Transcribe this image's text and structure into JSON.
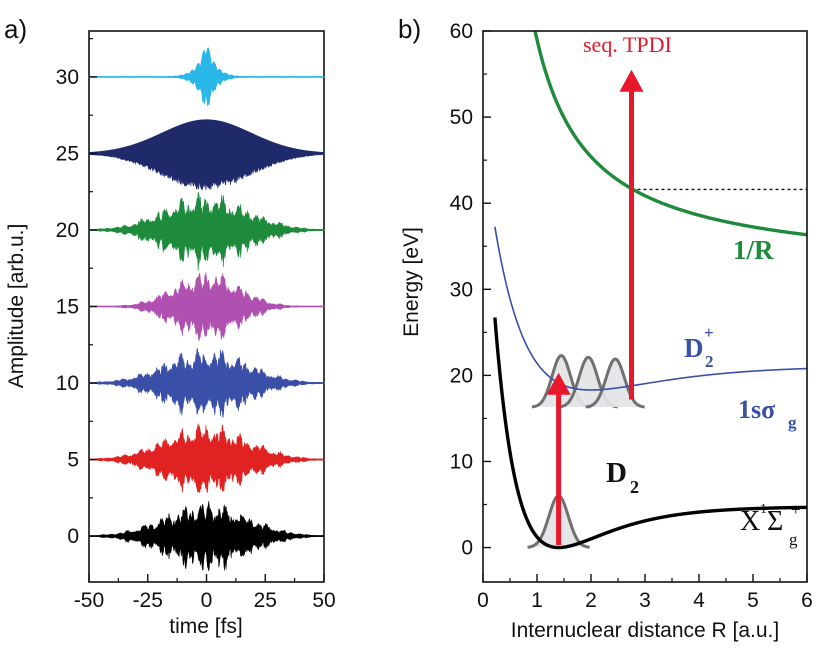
{
  "chart_data": [
    {
      "type": "line",
      "panel_label": "a)",
      "xlabel": "time [fs]",
      "ylabel": "Amplitude [arb.u.]",
      "xlim": [
        -50,
        50
      ],
      "ylim": [
        -3,
        33
      ],
      "x_ticks": [
        -50,
        -25,
        0,
        25,
        50
      ],
      "x_tick_labels": [
        "-50",
        "-25",
        "0",
        "25",
        "50"
      ],
      "y_ticks": [
        0,
        5,
        10,
        15,
        20,
        25,
        30
      ],
      "y_tick_labels": [
        "0",
        "5",
        "10",
        "15",
        "20",
        "25",
        "30"
      ],
      "grid": false,
      "series": [
        {
          "name": "pulse-30",
          "offset": 30,
          "color": "#29b7e8",
          "style": "sharp",
          "peak_amplitude": 2.3,
          "width_fs": 4
        },
        {
          "name": "pulse-25",
          "offset": 25,
          "color": "#1f2a6b",
          "style": "gaussian",
          "peak_amplitude": 2.1,
          "width_fs": 18
        },
        {
          "name": "pulse-20",
          "offset": 20,
          "color": "#1e8a3c",
          "style": "noisy",
          "peak_amplitude": 2.1,
          "width_fs": 14
        },
        {
          "name": "pulse-15",
          "offset": 15,
          "color": "#b050b0",
          "style": "noisy",
          "peak_amplitude": 2.1,
          "width_fs": 11
        },
        {
          "name": "pulse-10",
          "offset": 10,
          "color": "#3a4fa8",
          "style": "noisy",
          "peak_amplitude": 2.0,
          "width_fs": 14
        },
        {
          "name": "pulse-5",
          "offset": 5,
          "color": "#e02222",
          "style": "noisy",
          "peak_amplitude": 2.1,
          "width_fs": 14
        },
        {
          "name": "pulse-0",
          "offset": 0,
          "color": "#000000",
          "style": "noisy",
          "peak_amplitude": 2.0,
          "width_fs": 14
        }
      ]
    },
    {
      "type": "line",
      "panel_label": "b)",
      "xlabel": "Internuclear distance R [a.u.]",
      "ylabel": "Energy [eV]",
      "xlim": [
        0,
        6
      ],
      "ylim": [
        -4,
        60
      ],
      "x_ticks": [
        0,
        1,
        2,
        3,
        4,
        5,
        6
      ],
      "x_tick_labels": [
        "0",
        "1",
        "2",
        "3",
        "4",
        "5",
        "6"
      ],
      "y_ticks": [
        0,
        10,
        20,
        30,
        40,
        50,
        60
      ],
      "y_tick_labels": [
        "0",
        "10",
        "20",
        "30",
        "40",
        "50",
        "60"
      ],
      "grid": false,
      "curves": [
        {
          "name": "D2 ground state",
          "color": "#000000",
          "kind": "morse",
          "De": 4.75,
          "Re": 1.4,
          "a": 1.03,
          "shift": 0
        },
        {
          "name": "D2+ 1s sigma_g",
          "color": "#3a4fa8",
          "kind": "morse",
          "De": 2.8,
          "Re": 2.0,
          "a": 0.72,
          "shift": 18.3
        },
        {
          "name": "Coulomb 1/R",
          "color": "#1e8a3c",
          "kind": "coulomb",
          "coefficient": 27.2,
          "shift": 31.8
        }
      ],
      "wavepackets": [
        {
          "center_R": 1.4,
          "base_energy": 0,
          "height": 6,
          "sigma": 0.18
        },
        {
          "center_R": 1.45,
          "base_energy": 16.3,
          "height": 6,
          "sigma": 0.17
        },
        {
          "center_R": 1.95,
          "base_energy": 16.3,
          "height": 5.8,
          "sigma": 0.17
        },
        {
          "center_R": 2.45,
          "base_energy": 16.3,
          "height": 5.6,
          "sigma": 0.17
        }
      ],
      "arrows": [
        {
          "R": 1.4,
          "from_energy": 0.3,
          "to_energy": 20.3,
          "color": "#e8182c"
        },
        {
          "R": 2.75,
          "from_energy": 17.2,
          "to_energy": 55.5,
          "color": "#e8182c"
        }
      ],
      "dashed_line": {
        "from_R": 2.75,
        "to_R": 6,
        "energy": 41.6
      },
      "annotations": {
        "seq_tpdi": "seq. TPDI",
        "one_over_r": "1/R",
        "d2plus_base": "D",
        "d2plus_sub": "2",
        "d2plus_sup": "+",
        "sigma_label_base": "1sσ",
        "sigma_label_sub": "g",
        "d2_base": "D",
        "d2_sub": "2",
        "ground_base": "X",
        "ground_sup1": "1",
        "ground_sym": "Σ",
        "ground_sub": "g",
        "ground_sup2": "+"
      }
    }
  ]
}
